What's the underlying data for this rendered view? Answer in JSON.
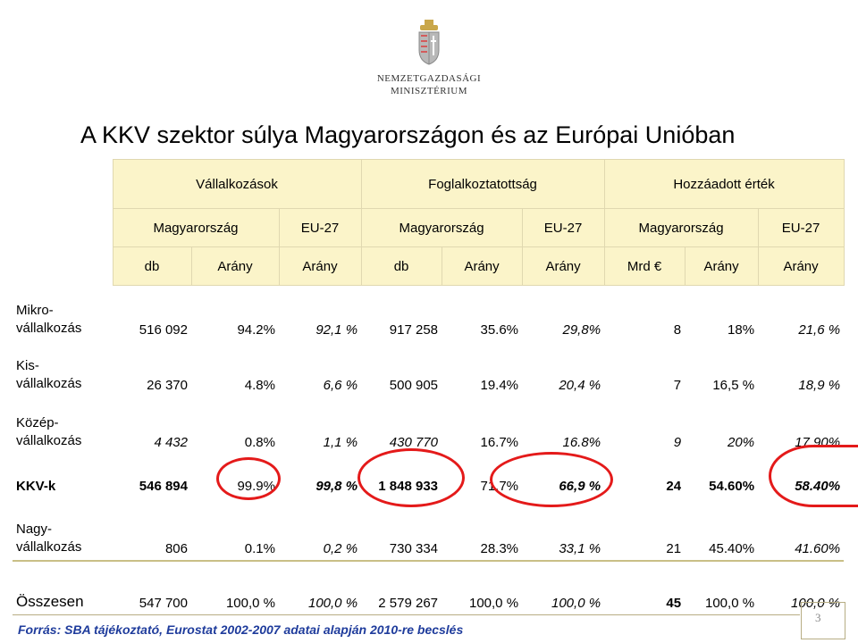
{
  "logo": {
    "line1": "NEMZETGAZDASÁGI",
    "line2": "MINISZTÉRIUM"
  },
  "title": "A KKV szektor súlya Magyarországon és az Európai Unióban",
  "header": {
    "groups": [
      "Vállalkozások",
      "Foglalkoztatottság",
      "Hozzáadott érték"
    ],
    "regions": [
      "Magyarország",
      "EU-27",
      "Magyarország",
      "EU-27",
      "Magyarország",
      "EU-27"
    ],
    "units": [
      "db",
      "Arány",
      "Arány",
      "db",
      "Arány",
      "Arány",
      "Mrd €",
      "Arány",
      "Arány"
    ]
  },
  "rows": [
    {
      "label1": "Mikro-",
      "label2": "vállalkozás",
      "cells": [
        "516 092",
        "94.2%",
        "92,1 %",
        "917 258",
        "35.6%",
        "29,8%",
        "8",
        "18%",
        "21,6 %"
      ]
    },
    {
      "label1": "Kis-",
      "label2": "vállalkozás",
      "cells": [
        "26 370",
        "4.8%",
        "6,6 %",
        "500 905",
        "19.4%",
        "20,4 %",
        "7",
        "16,5 %",
        "18,9 %"
      ]
    },
    {
      "label1": "Közép-",
      "label2": "vállalkozás",
      "cells": [
        "4 432",
        "0.8%",
        "1,1 %",
        "430 770",
        "16.7%",
        "16.8%",
        "9",
        "20%",
        "17.90%"
      ]
    },
    {
      "label1": "KKV-k",
      "label2": "",
      "cells": [
        "546 894",
        "99.9%",
        "99,8 %",
        "1 848 933",
        "71.7%",
        "66,9 %",
        "24",
        "54.60%",
        "58.40%"
      ]
    },
    {
      "label1": "Nagy-",
      "label2": "vállalkozás",
      "cells": [
        "806",
        "0.1%",
        "0,2 %",
        "730 334",
        "28.3%",
        "33,1 %",
        "21",
        "45.40%",
        "41.60%"
      ]
    },
    {
      "label1": "Összesen",
      "label2": "",
      "cells": [
        "547 700",
        "100,0 %",
        "100,0 %",
        "2 579 267",
        "100,0 %",
        "100,0 %",
        "45",
        "100,0 %",
        "100,0 %"
      ]
    }
  ],
  "source": "Forrás: SBA tájékoztató, Eurostat 2002-2007 adatai alapján 2010-re becslés",
  "page_number": "3"
}
